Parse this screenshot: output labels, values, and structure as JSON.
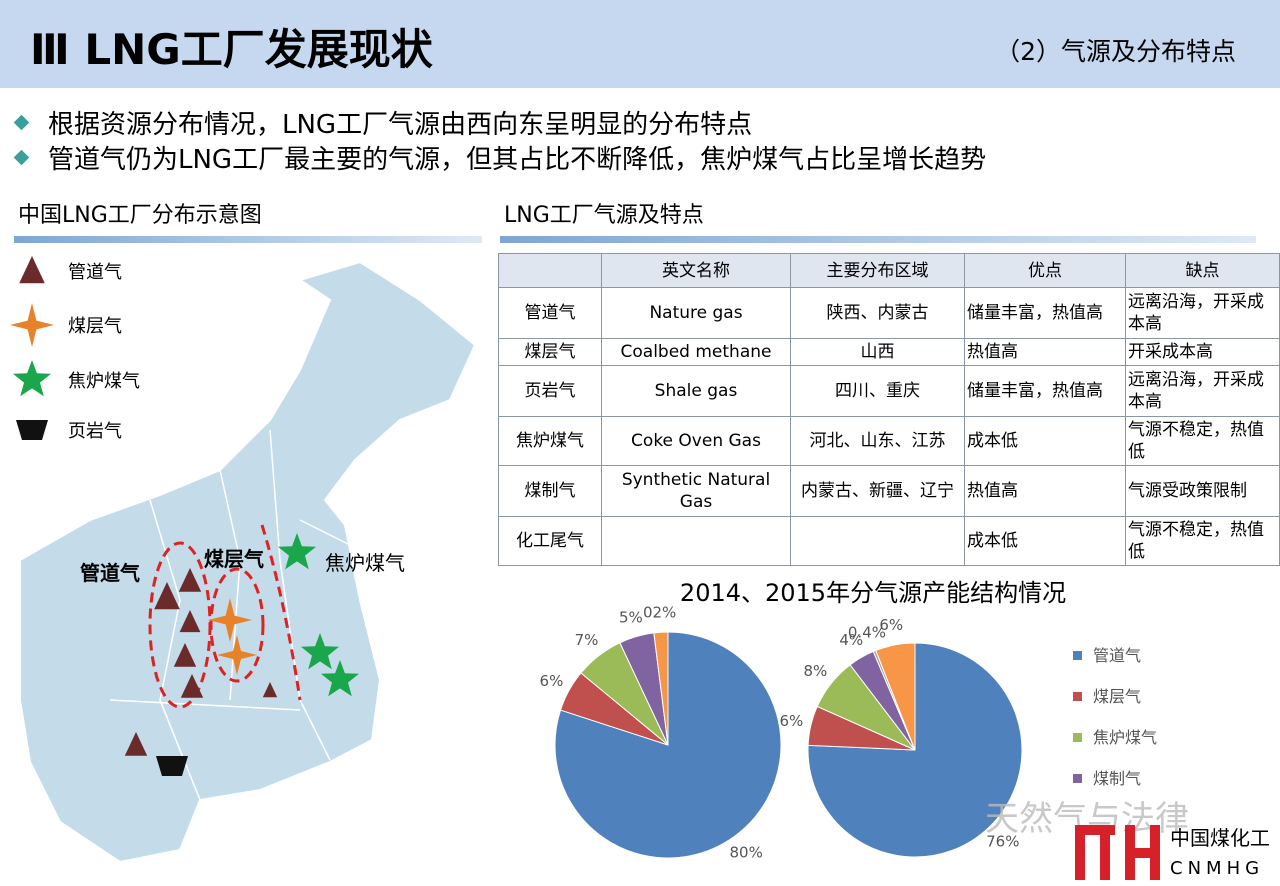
{
  "header": {
    "title": "Ⅲ LNG工厂发展现状",
    "subtitle": "（2）气源及分布特点"
  },
  "bullets": [
    "根据资源分布情况，LNG工厂气源由西向东呈明显的分布特点",
    "管道气仍为LNG工厂最主要的气源，但其占比不断降低，焦炉煤气占比呈增长趋势"
  ],
  "map": {
    "title": "中国LNG工厂分布示意图",
    "legend": [
      "管道气",
      "煤层气",
      "焦炉煤气",
      "页岩气"
    ],
    "labels": [
      "管道气",
      "煤层气",
      "焦炉煤气"
    ]
  },
  "table": {
    "title": "LNG工厂气源及特点",
    "header": [
      null,
      "英文名称",
      "主要分布区域",
      "优点",
      "缺点"
    ],
    "rows": [
      [
        "管道气",
        "Nature gas",
        "陕西、内蒙古",
        "储量丰富，热值高",
        "远离沿海，开采成本高"
      ],
      [
        "煤层气",
        "Coalbed methane",
        "山西",
        "热值高",
        "开采成本高"
      ],
      [
        "页岩气",
        "Shale gas",
        "四川、重庆",
        "储量丰富，热值高",
        "远离沿海，开采成本高"
      ],
      [
        "焦炉煤气",
        "Coke Oven Gas",
        "河北、山东、江苏",
        "成本低",
        "气源不稳定，热值低"
      ],
      [
        "煤制气",
        "Synthetic Natural Gas",
        "内蒙古、新疆、辽宁",
        "热值高",
        "气源受政策限制"
      ],
      [
        "化工尾气",
        null,
        null,
        "成本低",
        "气源不稳定，热值低"
      ]
    ]
  },
  "pie_title": "2014、2015年分气源产能结构情况",
  "legend": [
    "管道气",
    "煤层气",
    "焦炉煤气",
    "煤制气"
  ],
  "chart_data": [
    {
      "type": "pie",
      "values": [
        80,
        6,
        7,
        5,
        2
      ],
      "value_labels": [
        "80%",
        "6%",
        "7%",
        "5%",
        "02%"
      ],
      "colors": [
        "#4f81bd",
        "#c0504d",
        "#9bbb59",
        "#8064a2",
        "#f79646"
      ]
    },
    {
      "type": "pie",
      "values": [
        76,
        6,
        8,
        4,
        0.4,
        6
      ],
      "value_labels": [
        "76%",
        "6%",
        "8%",
        "4%",
        "0.4%",
        "6%"
      ],
      "colors": [
        "#4f81bd",
        "#c0504d",
        "#9bbb59",
        "#8064a2",
        "#a5a5a5",
        "#f79646"
      ]
    }
  ],
  "watermark": "天然气与法律",
  "logo": {
    "name": "中国煤化工",
    "code": "CNMHG"
  }
}
